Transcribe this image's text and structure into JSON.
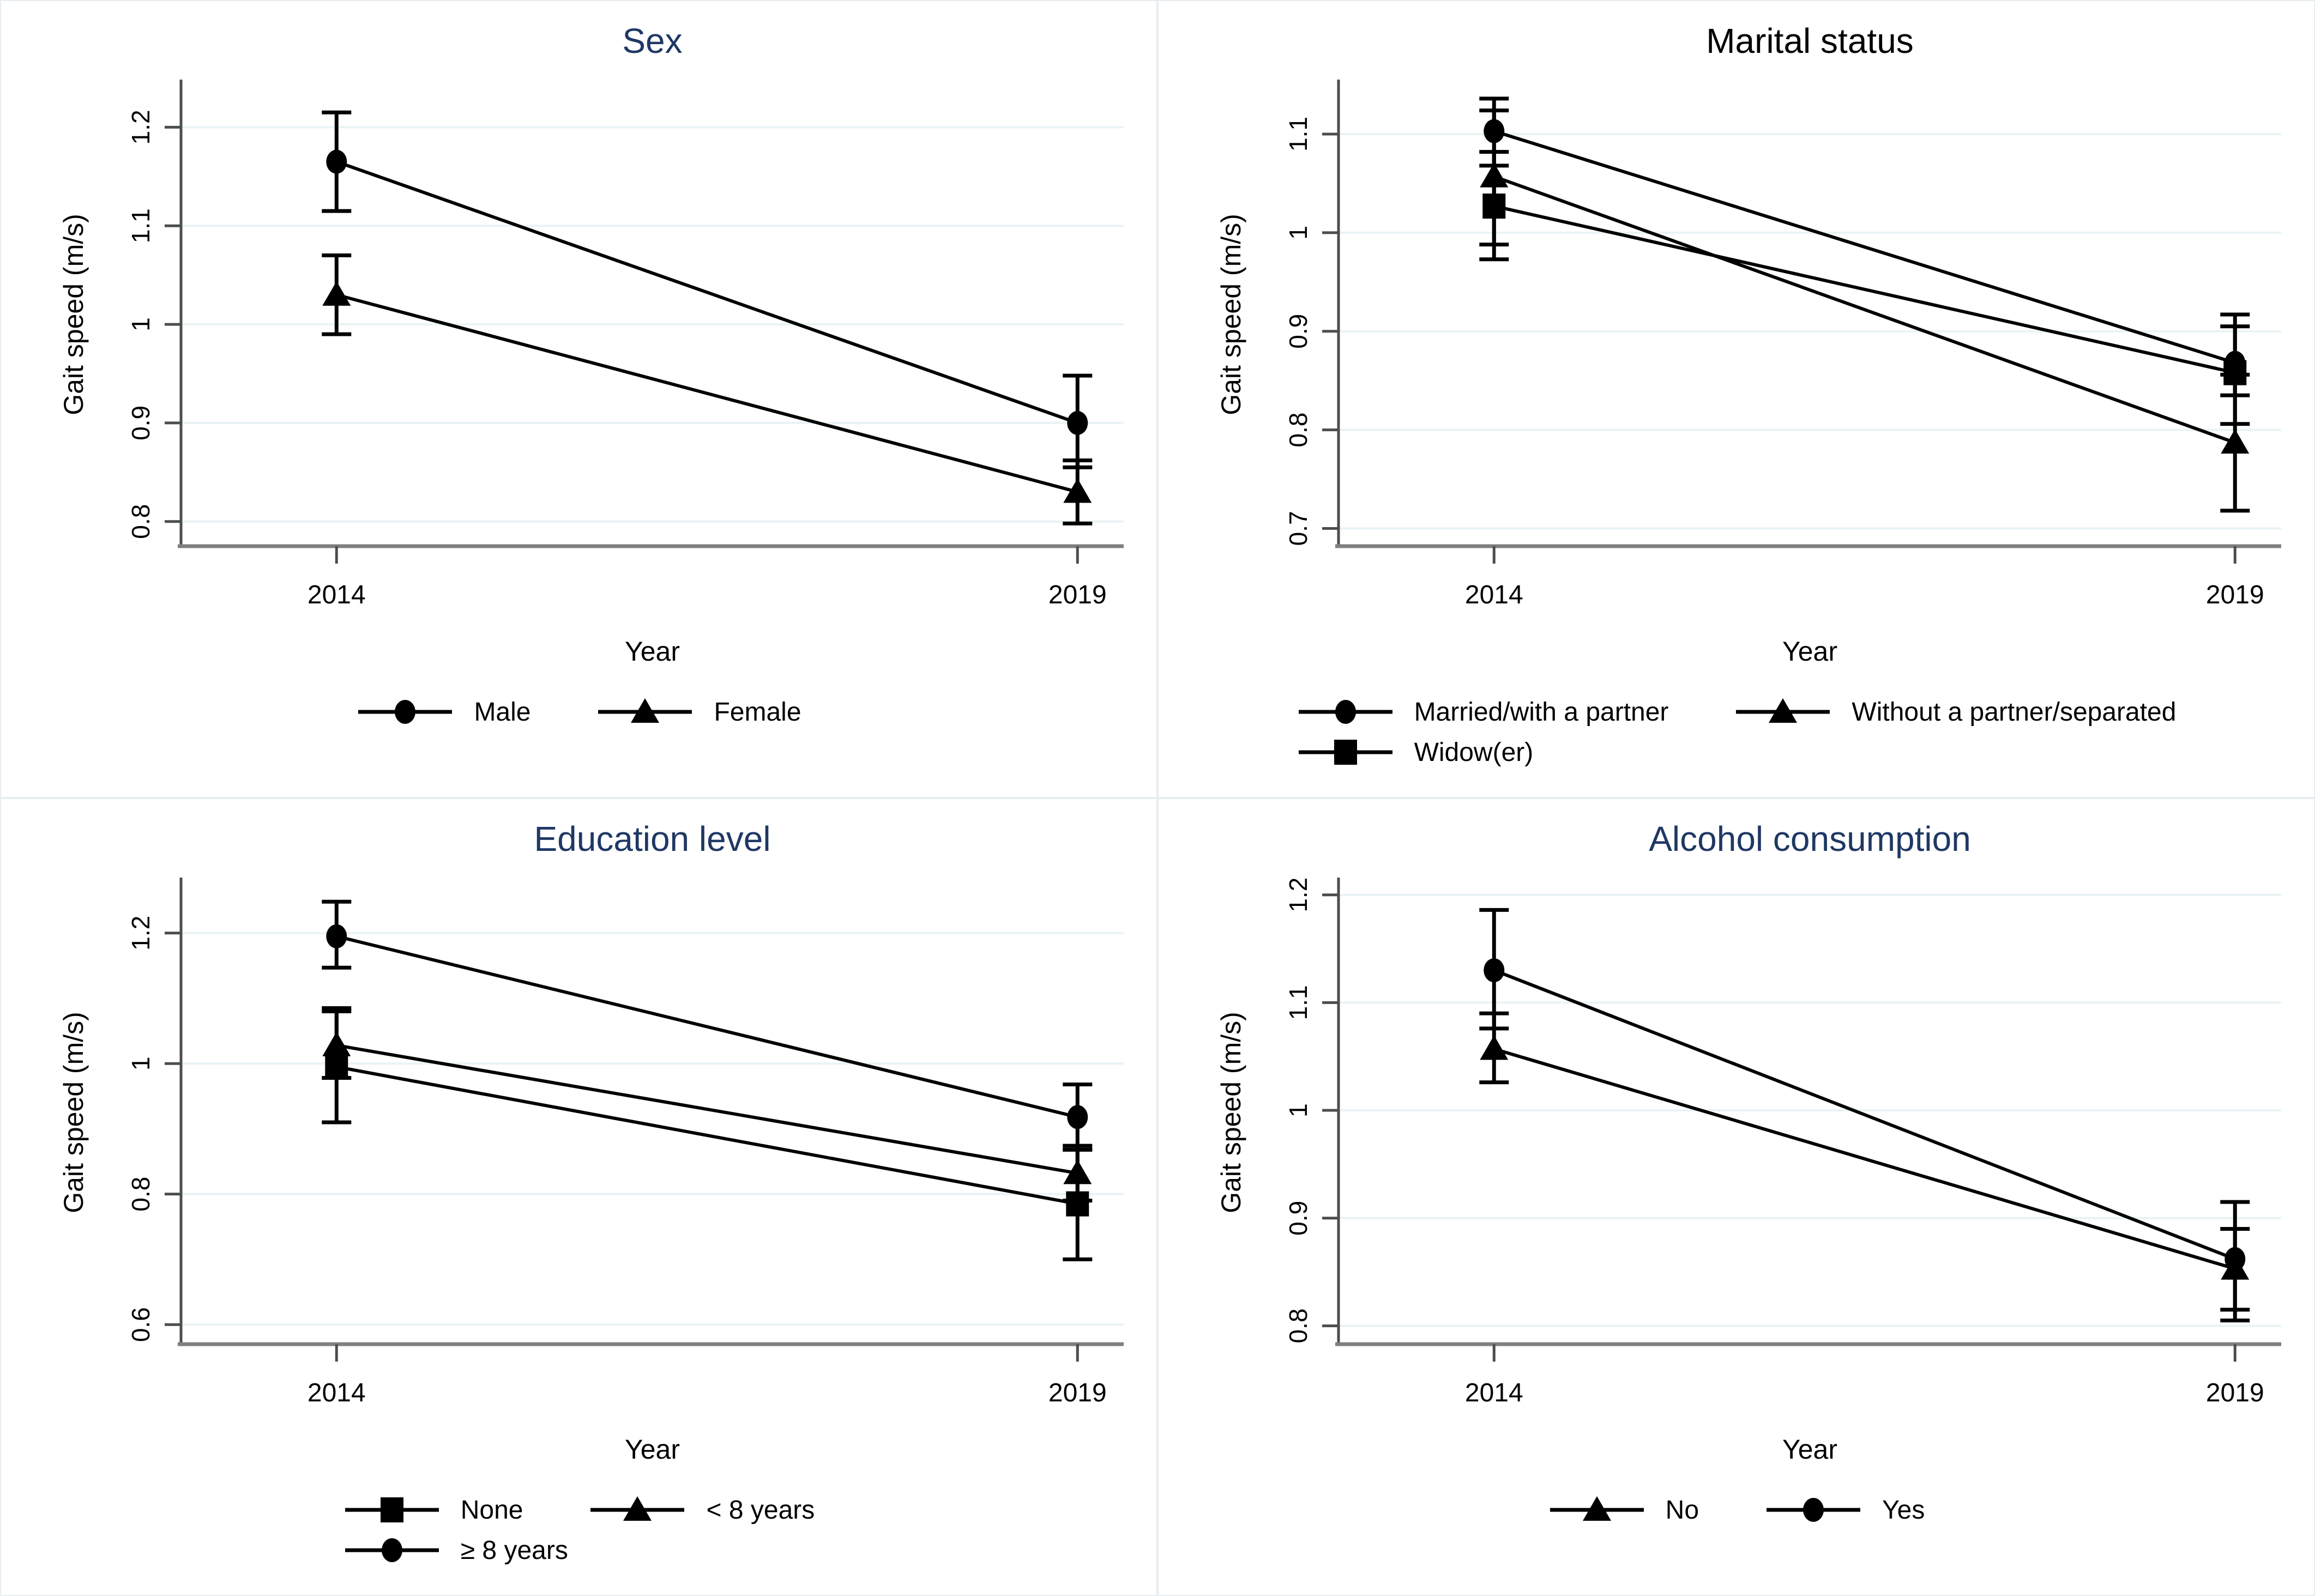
{
  "page": {
    "background": "#ffffff"
  },
  "styles": {
    "series_color": "#000000",
    "grid_color": "#e9f3f5",
    "x_axis_color": "#808080",
    "y_axis_color": "#4d4d4d",
    "tick_color": "#3a3a3a",
    "text_color": "#000000",
    "title_blue": "#1f3864",
    "panel_border": "#e7edf1"
  },
  "chart_data": [
    {
      "id": "sex",
      "type": "line",
      "title": "Sex",
      "title_color": "#1f3864",
      "xlabel": "Year",
      "ylabel": "Gait speed (m/s)",
      "x_categories": [
        "2014",
        "2019"
      ],
      "y_ticks": {
        "labels": [
          "0.8",
          "0.9",
          "1",
          "1.1",
          "1.2"
        ],
        "values": [
          0.8,
          0.9,
          1.0,
          1.1,
          1.2
        ]
      },
      "ylim": [
        0.775,
        1.245
      ],
      "grid": true,
      "legend_position": "bottom",
      "legend_rows": [
        [
          "Male",
          "Female"
        ]
      ],
      "series": [
        {
          "name": "Male",
          "marker": "circle",
          "values": [
            1.165,
            0.9
          ],
          "ci_low": [
            1.115,
            0.855
          ],
          "ci_high": [
            1.215,
            0.948
          ]
        },
        {
          "name": "Female",
          "marker": "triangle",
          "values": [
            1.03,
            0.83
          ],
          "ci_low": [
            0.99,
            0.798
          ],
          "ci_high": [
            1.07,
            0.862
          ]
        }
      ]
    },
    {
      "id": "marital-status",
      "type": "line",
      "title": "Marital status",
      "title_color": "#000000",
      "xlabel": "Year",
      "ylabel": "Gait speed (m/s)",
      "x_categories": [
        "2014",
        "2019"
      ],
      "y_ticks": {
        "labels": [
          "0.7",
          "0.8",
          "0.9",
          "1",
          "1.1"
        ],
        "values": [
          0.7,
          0.8,
          0.9,
          1.0,
          1.1
        ]
      },
      "ylim": [
        0.682,
        1.152
      ],
      "grid": true,
      "legend_position": "bottom",
      "legend_rows": [
        [
          "Married/with a partner",
          "Without a partner/separated"
        ],
        [
          "Widow(er)"
        ]
      ],
      "series": [
        {
          "name": "Married/with a partner",
          "marker": "circle",
          "values": [
            1.103,
            0.868
          ],
          "ci_low": [
            1.068,
            0.835
          ],
          "ci_high": [
            1.136,
            0.905
          ]
        },
        {
          "name": "Without a partner/separated",
          "marker": "triangle",
          "values": [
            1.057,
            0.787
          ],
          "ci_low": [
            0.988,
            0.718
          ],
          "ci_high": [
            1.124,
            0.856
          ]
        },
        {
          "name": "Widow(er)",
          "marker": "square",
          "values": [
            1.027,
            0.858
          ],
          "ci_low": [
            0.973,
            0.806
          ],
          "ci_high": [
            1.082,
            0.917
          ]
        }
      ]
    },
    {
      "id": "education-level",
      "type": "line",
      "title": "Education level",
      "title_color": "#1f3864",
      "xlabel": "Year",
      "ylabel": "Gait speed (m/s)",
      "x_categories": [
        "2014",
        "2019"
      ],
      "y_ticks": {
        "labels": [
          "0.6",
          "0.8",
          "1",
          "1.2"
        ],
        "values": [
          0.6,
          0.8,
          1.0,
          1.2
        ]
      },
      "ylim": [
        0.57,
        1.28
      ],
      "grid": true,
      "legend_position": "bottom",
      "legend_rows": [
        [
          "None",
          "< 8 years"
        ],
        [
          "≥ 8 years"
        ]
      ],
      "series": [
        {
          "name": "None",
          "marker": "square",
          "values": [
            0.995,
            0.785
          ],
          "ci_low": [
            0.91,
            0.7
          ],
          "ci_high": [
            1.08,
            0.868
          ]
        },
        {
          "name": "< 8 years",
          "marker": "triangle",
          "values": [
            1.028,
            0.832
          ],
          "ci_low": [
            0.978,
            0.79
          ],
          "ci_high": [
            1.085,
            0.874
          ]
        },
        {
          "name": "≥ 8 years",
          "marker": "circle",
          "values": [
            1.195,
            0.918
          ],
          "ci_low": [
            1.147,
            0.868
          ],
          "ci_high": [
            1.248,
            0.968
          ]
        }
      ]
    },
    {
      "id": "alcohol-consumption",
      "type": "line",
      "title": "Alcohol consumption",
      "title_color": "#1f3864",
      "xlabel": "Year",
      "ylabel": "Gait speed (m/s)",
      "x_categories": [
        "2014",
        "2019"
      ],
      "y_ticks": {
        "labels": [
          "0.8",
          "0.9",
          "1",
          "1.1",
          "1.2"
        ],
        "values": [
          0.8,
          0.9,
          1.0,
          1.1,
          1.2
        ]
      },
      "ylim": [
        0.783,
        1.213
      ],
      "grid": true,
      "legend_position": "bottom",
      "legend_rows": [
        [
          "No",
          "Yes"
        ]
      ],
      "series": [
        {
          "name": "No",
          "marker": "triangle",
          "values": [
            1.057,
            0.853
          ],
          "ci_low": [
            1.026,
            0.815
          ],
          "ci_high": [
            1.09,
            0.89
          ]
        },
        {
          "name": "Yes",
          "marker": "circle",
          "values": [
            1.13,
            0.862
          ],
          "ci_low": [
            1.076,
            0.805
          ],
          "ci_high": [
            1.186,
            0.915
          ]
        }
      ]
    }
  ]
}
